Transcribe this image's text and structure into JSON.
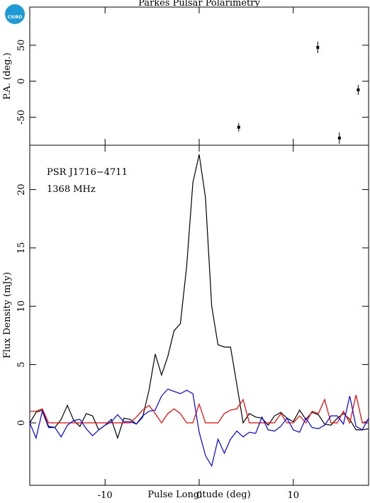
{
  "logo": "CSIRO",
  "chart_data": [
    {
      "type": "scatter",
      "title": "Parkes Pulsar Polarimetry",
      "ylabel": "P.A. (deg.)",
      "xlim": [
        -18,
        18
      ],
      "ylim": [
        -89,
        103
      ],
      "xticks": [
        -10,
        0,
        10
      ],
      "yticks": [
        -50,
        0,
        50
      ],
      "x": [
        4.2,
        12.6,
        14.9,
        16.9
      ],
      "values": [
        -64,
        47,
        -79,
        -12
      ],
      "errors": [
        6,
        8,
        8,
        7
      ],
      "color": "#000000"
    },
    {
      "type": "line",
      "ylabel": "Flux Density (mJy)",
      "xlabel": "Pulse Longitude (deg)",
      "annotations": [
        "PSR J1716−4711",
        "1368 MHz"
      ],
      "xlim": [
        -18,
        18
      ],
      "ylim": [
        -5.35,
        23.8
      ],
      "xticks": [
        -10,
        0,
        10
      ],
      "yticks": [
        0,
        5,
        10,
        15,
        20
      ],
      "x": [
        -18,
        -17.33,
        -16.67,
        -16,
        -15.33,
        -14.67,
        -14,
        -13.33,
        -12.67,
        -12,
        -11.33,
        -10.67,
        -10,
        -9.33,
        -8.67,
        -8,
        -7.33,
        -6.67,
        -6,
        -5.33,
        -4.67,
        -4,
        -3.33,
        -2.67,
        -2,
        -1.33,
        -0.67,
        0,
        0.67,
        1.33,
        2,
        2.67,
        3.33,
        4,
        4.67,
        5.33,
        6,
        6.67,
        7.33,
        8,
        8.67,
        9.33,
        10,
        10.67,
        11.33,
        12,
        12.67,
        13.33,
        14,
        14.67,
        15.33,
        16,
        16.67,
        17.33,
        18
      ],
      "series": [
        {
          "color": "#000000",
          "values": [
            0,
            0.9,
            1.1,
            -0.3,
            -0.4,
            0.3,
            1.5,
            0.2,
            -0.3,
            0.8,
            0.6,
            -0.6,
            -0.2,
            0.3,
            -1.3,
            0.4,
            0.3,
            -0.1,
            0.5,
            2.8,
            5.9,
            4.1,
            5.7,
            7.9,
            8.5,
            13.4,
            20.6,
            23,
            19.3,
            10,
            6.7,
            6.5,
            6.5,
            3.3,
            0,
            0.8,
            0.5,
            0.4,
            -0.2,
            0.6,
            0.9,
            0.4,
            0.1,
            1.1,
            0.3,
            0.9,
            0.7,
            -0.1,
            -0.2,
            0.4,
            0.8,
            0.3,
            -0.6,
            -0.6,
            -0.5
          ]
        },
        {
          "color": "#ff0000",
          "values": [
            1,
            1,
            1.2,
            0,
            0,
            0,
            0,
            0,
            0,
            0,
            0,
            0,
            0,
            0,
            0,
            0,
            0,
            0.5,
            1.1,
            1.5,
            0.8,
            0,
            0.8,
            1.2,
            0.8,
            0,
            0,
            1.6,
            0,
            0,
            0,
            0.8,
            1.1,
            1.2,
            2,
            0,
            0,
            0,
            0,
            0,
            0.8,
            0,
            0,
            0.6,
            0,
            1,
            0.8,
            2,
            0,
            0,
            1,
            0,
            2.4,
            0,
            0.2
          ]
        },
        {
          "color": "#0000ff",
          "values": [
            0,
            -1.3,
            1,
            -0.4,
            -0.4,
            -1.2,
            -0.2,
            0.2,
            0.3,
            -0.5,
            -1.1,
            -0.6,
            -0.2,
            0.1,
            0.7,
            0.1,
            0.1,
            -0.1,
            0.6,
            1,
            1.1,
            2.3,
            2.9,
            2.7,
            2.5,
            2.8,
            2.5,
            -0.8,
            -2.8,
            -3.7,
            -1.4,
            -2.6,
            -1.4,
            -0.7,
            -1.2,
            -0.8,
            -0.9,
            0.5,
            -0.6,
            -0.7,
            -0.3,
            0.4,
            -0.6,
            -0.8,
            0.4,
            -0.4,
            -0.5,
            -0.2,
            0.6,
            0.6,
            -0.1,
            2.3,
            -0.3,
            -0.6,
            0.4
          ]
        }
      ]
    }
  ]
}
